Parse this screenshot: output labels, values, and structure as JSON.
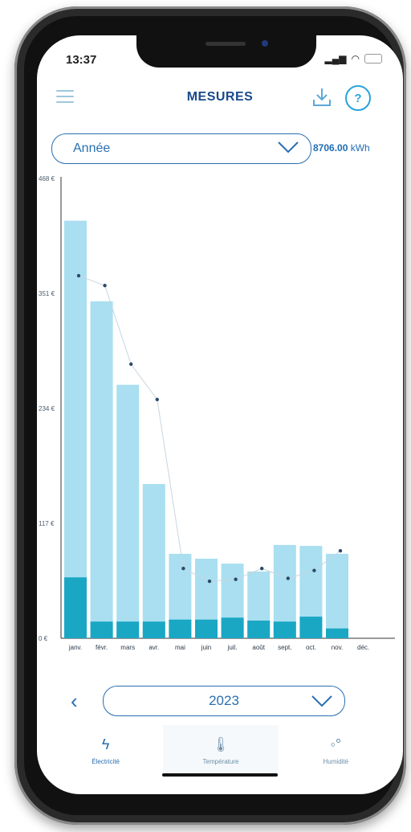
{
  "status": {
    "time": "13:37"
  },
  "header": {
    "title": "MESURES"
  },
  "period": {
    "selected": "Année"
  },
  "total": {
    "value": "8706.00",
    "unit": "kWh"
  },
  "year_nav": {
    "selected": "2023"
  },
  "tabs": [
    {
      "label": "Électricité",
      "active": true
    },
    {
      "label": "Température",
      "active": false
    },
    {
      "label": "Humidité",
      "active": false
    }
  ],
  "colors": {
    "bar_total": "#a9dff0",
    "bar_base": "#1aa7c4",
    "dot": "#2b4a6a",
    "accent": "#2a6fb0"
  },
  "chart_data": {
    "type": "bar",
    "categories": [
      "janv.",
      "févr.",
      "mars",
      "avr.",
      "mai",
      "juin",
      "juil.",
      "août",
      "sept.",
      "oct.",
      "nov.",
      "déc."
    ],
    "series": [
      {
        "values": [
          425,
          343,
          258,
          157,
          86,
          81,
          76,
          68,
          95,
          94,
          86,
          null
        ]
      },
      {
        "values": [
          62,
          17,
          17,
          17,
          19,
          19,
          21,
          18,
          17,
          22,
          10,
          null
        ]
      },
      {
        "values": [
          369,
          359,
          279,
          243,
          71,
          58,
          60,
          71,
          61,
          69,
          89,
          null
        ]
      }
    ],
    "yticks": [
      "468 €",
      "351 €",
      "234 €",
      "117 €",
      "0 €"
    ],
    "ylim": [
      0,
      468
    ]
  }
}
